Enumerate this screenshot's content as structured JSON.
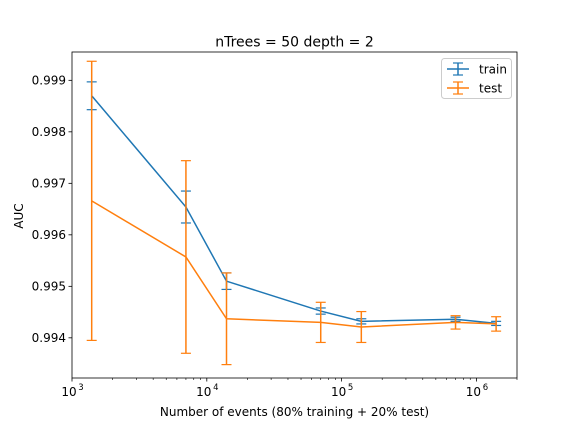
{
  "chart_data": {
    "type": "line",
    "title": "nTrees = 50 depth = 2",
    "xlabel": "Number of events (80% training + 20% test)",
    "ylabel": "AUC",
    "xscale": "log",
    "xlim": [
      1000,
      2000000
    ],
    "ylim": [
      0.99322,
      0.99955
    ],
    "x_ticks": [
      {
        "value": 1000,
        "base": "10",
        "exp": "3"
      },
      {
        "value": 10000,
        "base": "10",
        "exp": "4"
      },
      {
        "value": 100000,
        "base": "10",
        "exp": "5"
      },
      {
        "value": 1000000,
        "base": "10",
        "exp": "6"
      }
    ],
    "y_ticks": [
      {
        "value": 0.994,
        "label": "0.994"
      },
      {
        "value": 0.995,
        "label": "0.995"
      },
      {
        "value": 0.996,
        "label": "0.996"
      },
      {
        "value": 0.997,
        "label": "0.997"
      },
      {
        "value": 0.998,
        "label": "0.998"
      },
      {
        "value": 0.999,
        "label": "0.999"
      }
    ],
    "legend_position": "top-right",
    "grid": false,
    "series": [
      {
        "name": "train",
        "color": "#1f77b4",
        "x": [
          1400,
          7000,
          14000,
          70000,
          140000,
          700000,
          1400000
        ],
        "y": [
          0.9987,
          0.99654,
          0.9951,
          0.99452,
          0.99432,
          0.99436,
          0.99428
        ],
        "err": [
          0.00027,
          0.00031,
          0.00016,
          6e-05,
          5e-05,
          4e-05,
          4e-05
        ]
      },
      {
        "name": "test",
        "color": "#ff7f0e",
        "x": [
          1400,
          7000,
          14000,
          70000,
          140000,
          700000,
          1400000
        ],
        "y": [
          0.99666,
          0.99557,
          0.99437,
          0.9943,
          0.99421,
          0.9943,
          0.99427
        ],
        "err": [
          0.00271,
          0.00187,
          0.00089,
          0.00039,
          0.0003,
          0.00013,
          0.00014
        ]
      }
    ]
  }
}
